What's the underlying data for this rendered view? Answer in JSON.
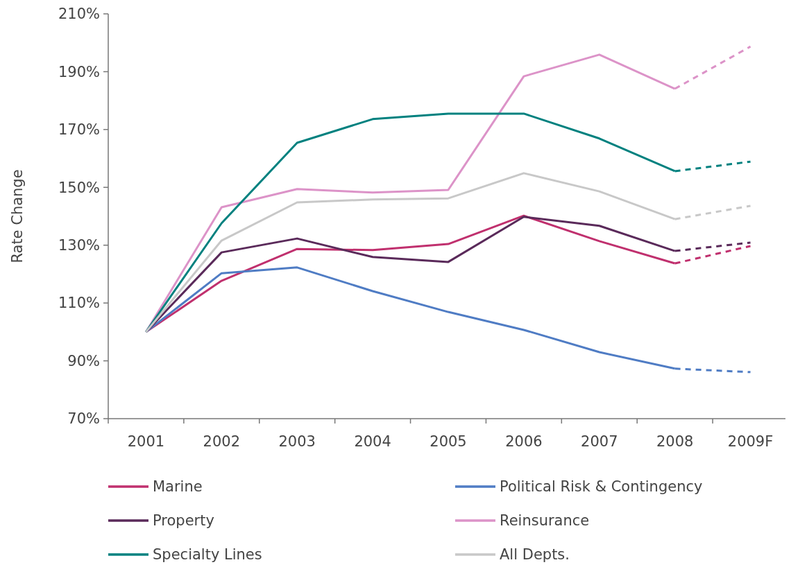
{
  "chart_data": {
    "type": "line",
    "ylabel": "Rate Change",
    "categories": [
      "2001",
      "2002",
      "2003",
      "2004",
      "2005",
      "2006",
      "2007",
      "2008",
      "2009F"
    ],
    "ylim": [
      70,
      210
    ],
    "yticks": [
      {
        "value": 70,
        "label": "70%"
      },
      {
        "value": 90,
        "label": "90%"
      },
      {
        "value": 110,
        "label": "110%"
      },
      {
        "value": 130,
        "label": "130%"
      },
      {
        "value": 150,
        "label": "150%"
      },
      {
        "value": 170,
        "label": "170%"
      },
      {
        "value": 190,
        "label": "190%"
      },
      {
        "value": 210,
        "label": "210%"
      }
    ],
    "grid": false,
    "legend": "bottom",
    "marker": "none",
    "line_style": "solid",
    "series": [
      {
        "name": "Marine",
        "color": "#c0306e",
        "values": [
          100,
          117.7,
          128.7,
          128.3,
          130.4,
          140.2,
          131.4,
          123.7,
          null
        ]
      },
      {
        "name": "Political Risk & Contingency",
        "color": "#4f7cc4",
        "values": [
          100,
          120.3,
          122.3,
          114.1,
          106.9,
          100.7,
          93,
          87.3,
          null
        ]
      },
      {
        "name": "Property",
        "color": "#5a2a5a",
        "values": [
          100,
          127.5,
          132.3,
          125.9,
          124.2,
          139.8,
          136.7,
          128,
          null
        ]
      },
      {
        "name": "Reinsurance",
        "color": "#dc93c8",
        "values": [
          100,
          143.1,
          149.4,
          148.2,
          149.1,
          188.4,
          195.9,
          184.1,
          null
        ]
      },
      {
        "name": "Specialty Lines",
        "color": "#00817f",
        "values": [
          100,
          137.6,
          165.4,
          173.6,
          175.5,
          175.5,
          166.9,
          155.6,
          null
        ]
      },
      {
        "name": "All Depts.",
        "color": "#c8c8c8",
        "values": [
          100,
          131.6,
          144.8,
          145.8,
          146.2,
          154.9,
          148.6,
          139,
          null
        ]
      },
      {
        "color": "#c0306e",
        "line_style": "dashed",
        "values": [
          null,
          null,
          null,
          null,
          null,
          null,
          null,
          123.7,
          129.7
        ]
      },
      {
        "color": "#4f7cc4",
        "line_style": "dashed",
        "values": [
          null,
          null,
          null,
          null,
          null,
          null,
          null,
          87.3,
          86.1
        ]
      },
      {
        "color": "#5a2a5a",
        "line_style": "dashed",
        "values": [
          null,
          null,
          null,
          null,
          null,
          null,
          null,
          128,
          130.9
        ]
      },
      {
        "color": "#dc93c8",
        "line_style": "dashed",
        "values": [
          null,
          null,
          null,
          null,
          null,
          null,
          null,
          184.1,
          198.7
        ]
      },
      {
        "color": "#00817f",
        "line_style": "dashed",
        "values": [
          null,
          null,
          null,
          null,
          null,
          null,
          null,
          155.6,
          158.9
        ]
      },
      {
        "color": "#c8c8c8",
        "line_style": "dashed",
        "values": [
          null,
          null,
          null,
          null,
          null,
          null,
          null,
          139,
          143.6
        ]
      }
    ]
  }
}
